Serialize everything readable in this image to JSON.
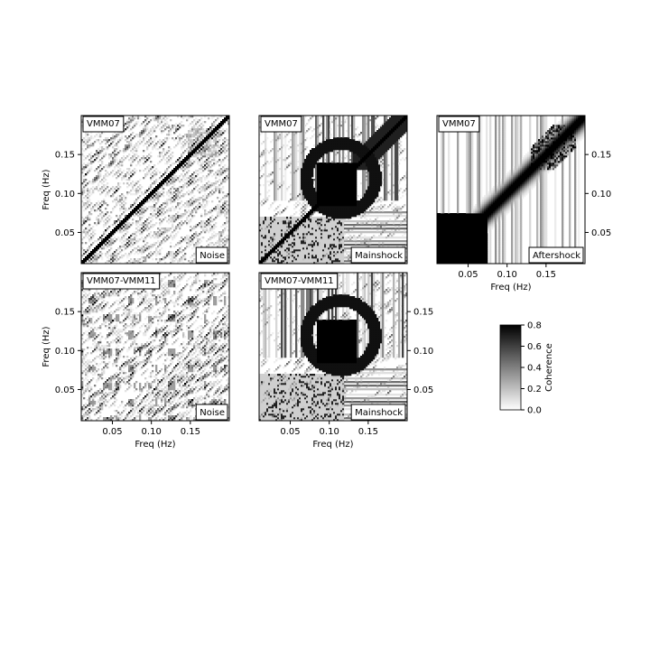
{
  "chart_data": {
    "type": "heatmap",
    "colormap": "gray_r",
    "layout": "2 rows x 3 columns grid, lower-right panel replaced by colorbar",
    "colorbar": {
      "label": "Coherence",
      "range": [
        0.0,
        0.8
      ],
      "ticks": [
        "0.0",
        "0.2",
        "0.4",
        "0.6",
        "0.8"
      ]
    },
    "panels": [
      {
        "station": "VMM07",
        "event": "Noise",
        "xrange": [
          0.01,
          0.2
        ],
        "yrange": [
          0.01,
          0.2
        ],
        "xticks": [],
        "yticks": [
          "0.05",
          "0.10",
          "0.15"
        ],
        "ylabel": "Freq (Hz)",
        "xlabel": "",
        "yaxis_side": "left",
        "pattern": "noise",
        "seed": 11
      },
      {
        "station": "VMM07",
        "event": "Mainshock",
        "xrange": [
          0.01,
          0.2
        ],
        "yrange": [
          0.01,
          0.2
        ],
        "xticks": [],
        "yticks": [],
        "ylabel": "",
        "xlabel": "",
        "yaxis_side": "none",
        "pattern": "mainshock",
        "seed": 23
      },
      {
        "station": "VMM07",
        "event": "Aftershock",
        "xrange": [
          0.01,
          0.2
        ],
        "yrange": [
          0.01,
          0.2
        ],
        "xticks": [
          "0.05",
          "0.10",
          "0.15"
        ],
        "yticks": [
          "0.05",
          "0.10",
          "0.15"
        ],
        "ylabel": "",
        "xlabel": "Freq (Hz)",
        "yaxis_side": "right",
        "pattern": "aftershock",
        "seed": 37
      },
      {
        "station": "VMM07-VMM11",
        "event": "Noise",
        "xrange": [
          0.01,
          0.2
        ],
        "yrange": [
          0.01,
          0.2
        ],
        "xticks": [
          "0.05",
          "0.10",
          "0.15"
        ],
        "yticks": [
          "0.05",
          "0.10",
          "0.15"
        ],
        "ylabel": "Freq (Hz)",
        "xlabel": "Freq (Hz)",
        "yaxis_side": "left",
        "pattern": "noise2",
        "seed": 51
      },
      {
        "station": "VMM07-VMM11",
        "event": "Mainshock",
        "xrange": [
          0.01,
          0.2
        ],
        "yrange": [
          0.01,
          0.2
        ],
        "xticks": [
          "0.05",
          "0.10",
          "0.15"
        ],
        "yticks": [
          "0.05",
          "0.10",
          "0.15"
        ],
        "ylabel": "",
        "xlabel": "Freq (Hz)",
        "yaxis_side": "right",
        "pattern": "mainshock2",
        "seed": 67
      }
    ]
  }
}
